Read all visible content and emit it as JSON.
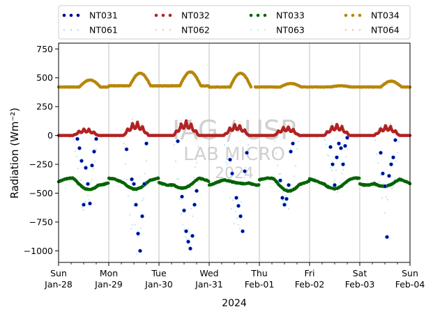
{
  "chart_data": {
    "type": "scatter",
    "title": "",
    "xlabel": "2024",
    "ylabel": "Radiation (Wm⁻²)",
    "xlim": [
      "2024-01-28",
      "2024-02-04"
    ],
    "ylim": [
      -1100,
      800
    ],
    "grid": "vertical-only",
    "legend_placement": "top, outside plot, 4 columns",
    "x_ticks": [
      {
        "date": "2024-01-28",
        "day": "Sun",
        "label": "Jan-28"
      },
      {
        "date": "2024-01-29",
        "day": "Mon",
        "label": "Jan-29"
      },
      {
        "date": "2024-01-30",
        "day": "Tue",
        "label": "Jan-30"
      },
      {
        "date": "2024-01-31",
        "day": "Wed",
        "label": "Jan-31"
      },
      {
        "date": "2024-02-01",
        "day": "Thu",
        "label": "Feb-01"
      },
      {
        "date": "2024-02-02",
        "day": "Fri",
        "label": "Feb-02"
      },
      {
        "date": "2024-02-03",
        "day": "Sat",
        "label": "Feb-03"
      },
      {
        "date": "2024-02-04",
        "day": "Sun",
        "label": "Feb-04"
      }
    ],
    "y_ticks": [
      -1000,
      -750,
      -500,
      -250,
      0,
      250,
      500,
      750
    ],
    "watermark": [
      "IAG / USP",
      "LAB MICRO",
      "2024"
    ],
    "series": [
      {
        "name": "NT031",
        "color": "#00008b",
        "marker": "dot-edged",
        "points": [
          [
            "2024-01-28 09:00",
            -30
          ],
          [
            "2024-01-28 10:00",
            -110
          ],
          [
            "2024-01-28 11:00",
            -220
          ],
          [
            "2024-01-28 12:00",
            -600
          ],
          [
            "2024-01-28 13:00",
            -280
          ],
          [
            "2024-01-28 14:00",
            -420
          ],
          [
            "2024-01-28 15:00",
            -590
          ],
          [
            "2024-01-28 16:00",
            -260
          ],
          [
            "2024-01-28 17:00",
            -140
          ],
          [
            "2024-01-28 18:00",
            -30
          ],
          [
            "2024-01-29 08:30",
            -120
          ],
          [
            "2024-01-29 11:00",
            -380
          ],
          [
            "2024-01-29 12:00",
            -420
          ],
          [
            "2024-01-29 13:00",
            -600
          ],
          [
            "2024-01-29 14:00",
            -850
          ],
          [
            "2024-01-29 15:00",
            -1000
          ],
          [
            "2024-01-29 16:00",
            -700
          ],
          [
            "2024-01-29 17:00",
            -420
          ],
          [
            "2024-01-29 18:00",
            -70
          ],
          [
            "2024-01-30 09:00",
            -50
          ],
          [
            "2024-01-30 11:00",
            -530
          ],
          [
            "2024-01-30 12:00",
            -650
          ],
          [
            "2024-01-30 13:00",
            -830
          ],
          [
            "2024-01-30 14:00",
            -920
          ],
          [
            "2024-01-30 15:00",
            -980
          ],
          [
            "2024-01-30 16:00",
            -870
          ],
          [
            "2024-01-30 17:00",
            -600
          ],
          [
            "2024-01-30 18:00",
            -480
          ],
          [
            "2024-01-31 10:00",
            -210
          ],
          [
            "2024-01-31 11:00",
            -330
          ],
          [
            "2024-01-31 13:00",
            -540
          ],
          [
            "2024-01-31 14:00",
            -610
          ],
          [
            "2024-01-31 15:00",
            -700
          ],
          [
            "2024-01-31 16:00",
            -830
          ],
          [
            "2024-01-31 17:00",
            -310
          ],
          [
            "2024-01-31 18:00",
            -150
          ],
          [
            "2024-02-01 10:00",
            -390
          ],
          [
            "2024-02-01 11:00",
            -540
          ],
          [
            "2024-02-01 12:00",
            -600
          ],
          [
            "2024-02-01 13:00",
            -550
          ],
          [
            "2024-02-01 14:00",
            -430
          ],
          [
            "2024-02-01 15:00",
            -140
          ],
          [
            "2024-02-01 16:00",
            -70
          ],
          [
            "2024-02-02 10:00",
            -100
          ],
          [
            "2024-02-02 11:00",
            -250
          ],
          [
            "2024-02-02 12:00",
            -430
          ],
          [
            "2024-02-02 13:00",
            -190
          ],
          [
            "2024-02-02 14:00",
            -70
          ],
          [
            "2024-02-02 15:00",
            -110
          ],
          [
            "2024-02-02 16:00",
            -250
          ],
          [
            "2024-02-02 17:00",
            -90
          ],
          [
            "2024-02-02 18:00",
            -20
          ],
          [
            "2024-02-03 10:00",
            -150
          ],
          [
            "2024-02-03 11:00",
            -330
          ],
          [
            "2024-02-03 12:00",
            -440
          ],
          [
            "2024-02-03 13:00",
            -880
          ],
          [
            "2024-02-03 14:00",
            -350
          ],
          [
            "2024-02-03 15:00",
            -250
          ],
          [
            "2024-02-03 16:00",
            -190
          ],
          [
            "2024-02-03 17:00",
            -40
          ]
        ]
      },
      {
        "name": "NT032",
        "color": "#b22222",
        "marker": "dot",
        "baseline": 0,
        "profile": "sw"
      },
      {
        "name": "NT033",
        "color": "#006400",
        "marker": "dot",
        "profile": "lw_net"
      },
      {
        "name": "NT034",
        "color": "#b8860b",
        "marker": "dot",
        "profile": "lw_down",
        "daily_peaks": [
          480,
          540,
          550,
          540,
          450,
          430,
          470
        ]
      },
      {
        "name": "NT061",
        "color": "#87ceeb",
        "marker": "faint-dot",
        "profile": "net_faint"
      },
      {
        "name": "NT062",
        "color": "#f4a6a6",
        "marker": "faint-dot",
        "profile": "sw_faint"
      },
      {
        "name": "NT063",
        "color": "#98f5c4",
        "marker": "faint-dot",
        "profile": "lw_net_faint"
      },
      {
        "name": "NT064",
        "color": "#f4a460",
        "marker": "faint-dot",
        "profile": "lw_down_faint"
      }
    ]
  }
}
